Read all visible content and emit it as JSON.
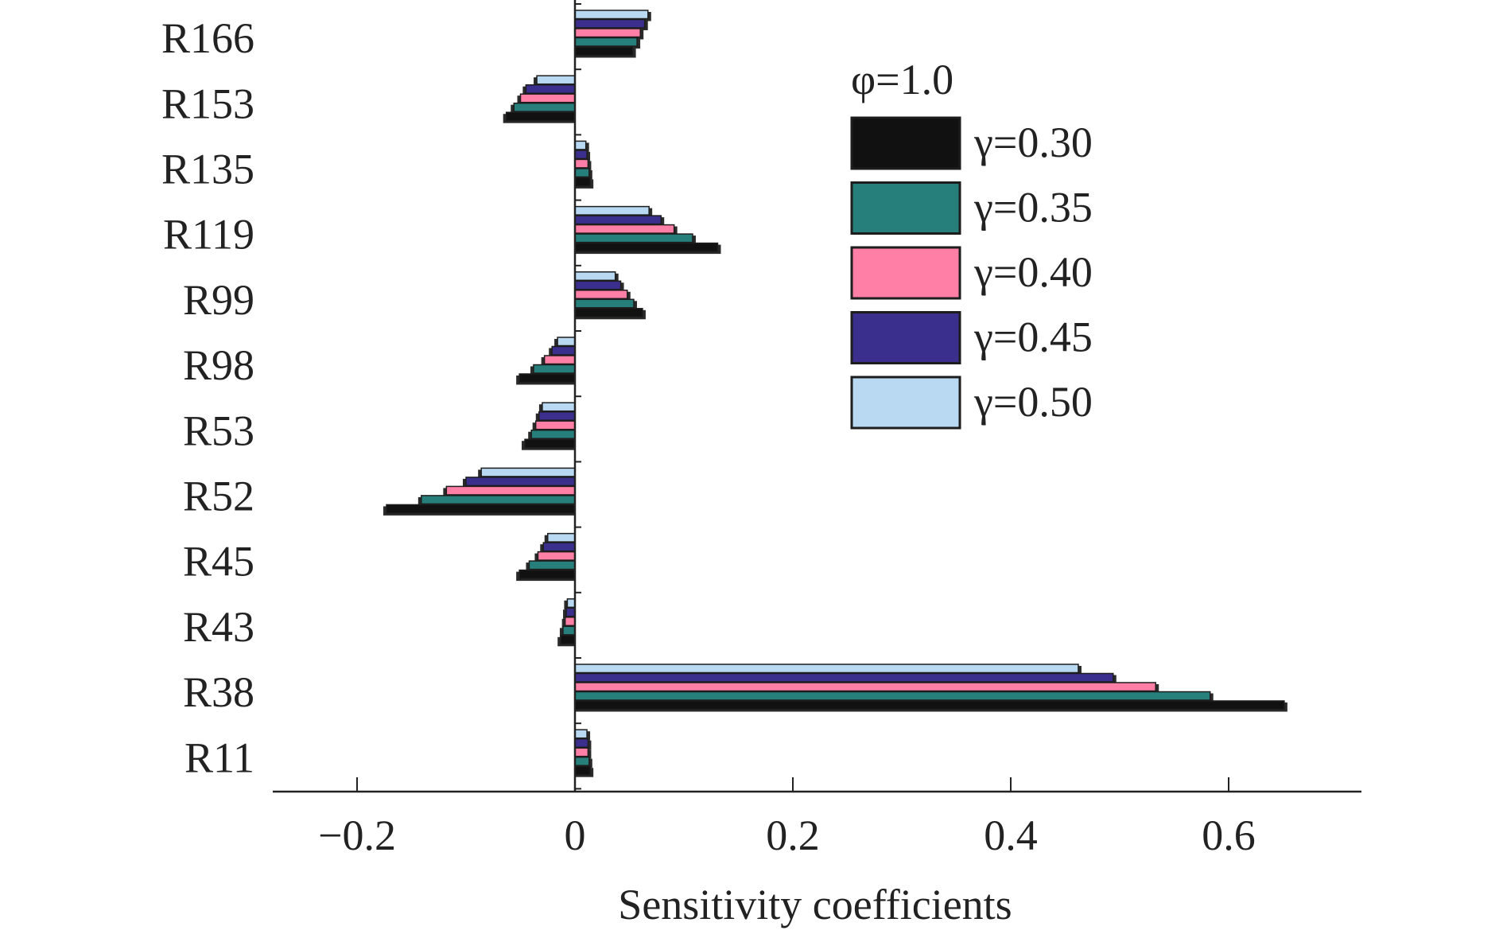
{
  "chart_data": {
    "type": "bar",
    "orientation": "horizontal",
    "xlabel": "Sensitivity coefficients",
    "ylabel": "",
    "xlim": [
      -0.27,
      0.72
    ],
    "xticks": [
      -0.2,
      0,
      0.2,
      0.4,
      0.6
    ],
    "xtick_labels": [
      "−0.2",
      "0",
      "0.2",
      "0.4",
      "0.6"
    ],
    "categories": [
      "R166",
      "R153",
      "R135",
      "R119",
      "R99",
      "R98",
      "R53",
      "R52",
      "R45",
      "R43",
      "R38",
      "R11"
    ],
    "legend_title": "φ=1.0",
    "legend_position": "top-right",
    "series": [
      {
        "name": "γ=0.30",
        "color": "#111111",
        "values": [
          0.053,
          -0.063,
          0.014,
          0.131,
          0.062,
          -0.051,
          -0.046,
          -0.173,
          -0.051,
          -0.013,
          0.651,
          0.014
        ]
      },
      {
        "name": "γ=0.35",
        "color": "#267f7b",
        "values": [
          0.057,
          -0.056,
          0.013,
          0.108,
          0.054,
          -0.038,
          -0.04,
          -0.141,
          -0.042,
          -0.011,
          0.583,
          0.013
        ]
      },
      {
        "name": "γ=0.40",
        "color": "#ff7fa6",
        "values": [
          0.06,
          -0.05,
          0.012,
          0.091,
          0.048,
          -0.028,
          -0.036,
          -0.118,
          -0.034,
          -0.009,
          0.533,
          0.012
        ]
      },
      {
        "name": "γ=0.45",
        "color": "#3a2f8c",
        "values": [
          0.064,
          -0.045,
          0.011,
          0.079,
          0.042,
          -0.021,
          -0.033,
          -0.1,
          -0.029,
          -0.008,
          0.494,
          0.012
        ]
      },
      {
        "name": "γ=0.50",
        "color": "#b9d9f2",
        "values": [
          0.067,
          -0.035,
          0.01,
          0.068,
          0.037,
          -0.016,
          -0.03,
          -0.086,
          -0.025,
          -0.007,
          0.462,
          0.011
        ]
      }
    ]
  }
}
